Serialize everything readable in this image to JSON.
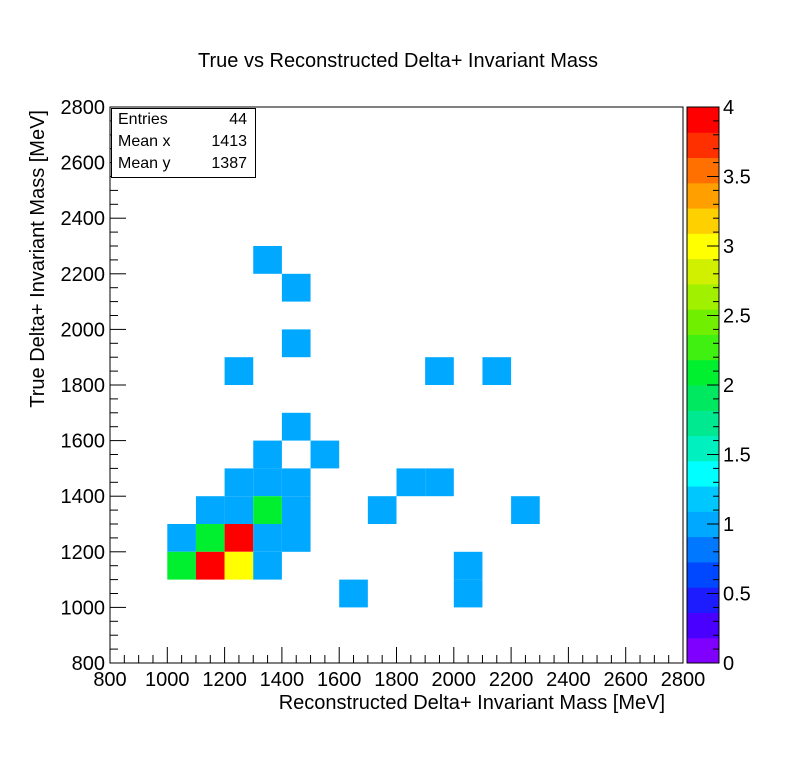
{
  "chart_data": {
    "type": "heatmap",
    "title": "True vs Reconstructed Delta+ Invariant Mass",
    "xlabel": "Reconstructed Delta+ Invariant Mass [MeV]",
    "ylabel": "True Delta+ Invariant Mass [MeV]",
    "xlim": [
      800,
      2800
    ],
    "ylim": [
      800,
      2800
    ],
    "bin_width": 100,
    "x_ticks": [
      "800",
      "1000",
      "1200",
      "1400",
      "1600",
      "1800",
      "2000",
      "2200",
      "2400",
      "2600",
      "2800"
    ],
    "y_ticks": [
      "800",
      "1000",
      "1200",
      "1400",
      "1600",
      "1800",
      "2000",
      "2200",
      "2400",
      "2600",
      "2800"
    ],
    "zlim": [
      0,
      4
    ],
    "z_ticks": [
      "0",
      "0.5",
      "1",
      "1.5",
      "2",
      "2.5",
      "3",
      "3.5",
      "4"
    ],
    "palette": [
      "#7f00ff",
      "#4a00ff",
      "#1c1cff",
      "#0048ff",
      "#0078ff",
      "#00a8ff",
      "#00c8ff",
      "#00ffff",
      "#00f0c0",
      "#00e890",
      "#00e860",
      "#00f030",
      "#40f010",
      "#70f000",
      "#a0f000",
      "#d0f000",
      "#ffff00",
      "#ffd000",
      "#ffa000",
      "#ff7000",
      "#ff3000",
      "#ff0000"
    ],
    "stats": {
      "entries_label": "Entries",
      "entries": "44",
      "meanx_label": "Mean x",
      "meanx": "1413",
      "meany_label": "Mean y",
      "meany": "1387"
    },
    "bins": [
      {
        "x": 1300,
        "y": 2200,
        "z": 1
      },
      {
        "x": 1400,
        "y": 2100,
        "z": 1
      },
      {
        "x": 1400,
        "y": 1900,
        "z": 1
      },
      {
        "x": 1200,
        "y": 1800,
        "z": 1
      },
      {
        "x": 1900,
        "y": 1800,
        "z": 1
      },
      {
        "x": 2100,
        "y": 1800,
        "z": 1
      },
      {
        "x": 1400,
        "y": 1600,
        "z": 1
      },
      {
        "x": 1300,
        "y": 1500,
        "z": 1
      },
      {
        "x": 1500,
        "y": 1500,
        "z": 1
      },
      {
        "x": 1200,
        "y": 1400,
        "z": 1
      },
      {
        "x": 1300,
        "y": 1400,
        "z": 1
      },
      {
        "x": 1400,
        "y": 1400,
        "z": 1
      },
      {
        "x": 1800,
        "y": 1400,
        "z": 1
      },
      {
        "x": 1900,
        "y": 1400,
        "z": 1
      },
      {
        "x": 1100,
        "y": 1300,
        "z": 1
      },
      {
        "x": 1200,
        "y": 1300,
        "z": 1
      },
      {
        "x": 1300,
        "y": 1300,
        "z": 2
      },
      {
        "x": 1400,
        "y": 1300,
        "z": 1
      },
      {
        "x": 1700,
        "y": 1300,
        "z": 1
      },
      {
        "x": 2200,
        "y": 1300,
        "z": 1
      },
      {
        "x": 1000,
        "y": 1200,
        "z": 1
      },
      {
        "x": 1100,
        "y": 1200,
        "z": 2
      },
      {
        "x": 1200,
        "y": 1200,
        "z": 4
      },
      {
        "x": 1300,
        "y": 1200,
        "z": 1
      },
      {
        "x": 1400,
        "y": 1200,
        "z": 1
      },
      {
        "x": 1000,
        "y": 1100,
        "z": 2
      },
      {
        "x": 1100,
        "y": 1100,
        "z": 4
      },
      {
        "x": 1200,
        "y": 1100,
        "z": 3
      },
      {
        "x": 1300,
        "y": 1100,
        "z": 1
      },
      {
        "x": 2000,
        "y": 1100,
        "z": 1
      },
      {
        "x": 1600,
        "y": 1000,
        "z": 1
      },
      {
        "x": 2000,
        "y": 1000,
        "z": 1
      }
    ]
  }
}
